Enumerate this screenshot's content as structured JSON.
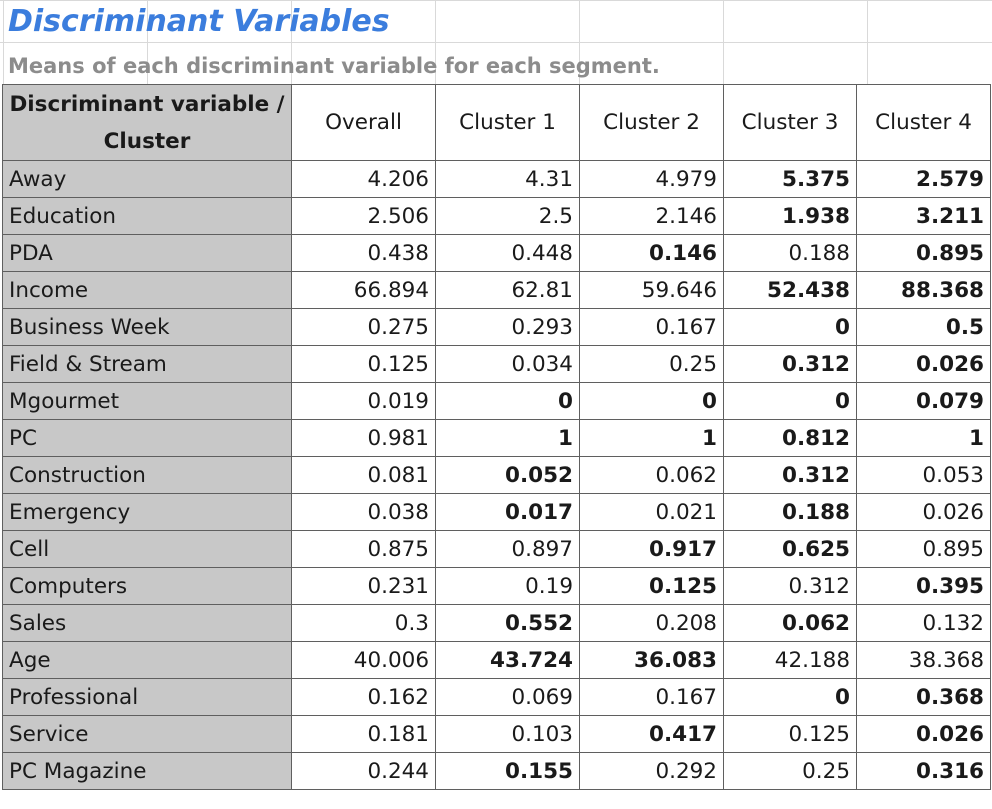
{
  "sheet": {
    "title": "Discriminant Variables",
    "subtitle": "Means of each discriminant variable for each segment."
  },
  "colors": {
    "title": "#3b7ddd",
    "high": "#2d8a24",
    "low": "#e8221e",
    "header_bg": "#c8c8c8"
  },
  "table": {
    "corner": "Discriminant variable / Cluster",
    "columns": [
      "Overall",
      "Cluster 1",
      "Cluster 2",
      "Cluster 3",
      "Cluster 4"
    ],
    "rows": [
      {
        "label": "Away",
        "values": [
          "4.206",
          "4.31",
          "4.979",
          "5.375",
          "2.579"
        ],
        "marks": [
          "",
          "",
          "",
          "hi",
          "lo"
        ]
      },
      {
        "label": "Education",
        "values": [
          "2.506",
          "2.5",
          "2.146",
          "1.938",
          "3.211"
        ],
        "marks": [
          "",
          "",
          "",
          "lo",
          "hi"
        ]
      },
      {
        "label": "PDA",
        "values": [
          "0.438",
          "0.448",
          "0.146",
          "0.188",
          "0.895"
        ],
        "marks": [
          "",
          "",
          "lo",
          "",
          "hi"
        ]
      },
      {
        "label": "Income",
        "values": [
          "66.894",
          "62.81",
          "59.646",
          "52.438",
          "88.368"
        ],
        "marks": [
          "",
          "",
          "",
          "lo",
          "hi"
        ]
      },
      {
        "label": "Business Week",
        "values": [
          "0.275",
          "0.293",
          "0.167",
          "0",
          "0.5"
        ],
        "marks": [
          "",
          "",
          "",
          "lo",
          "hi"
        ]
      },
      {
        "label": "Field & Stream",
        "values": [
          "0.125",
          "0.034",
          "0.25",
          "0.312",
          "0.026"
        ],
        "marks": [
          "",
          "",
          "",
          "hi",
          "lo"
        ]
      },
      {
        "label": "Mgourmet",
        "values": [
          "0.019",
          "0",
          "0",
          "0",
          "0.079"
        ],
        "marks": [
          "",
          "lo",
          "lo",
          "lo",
          "hi"
        ]
      },
      {
        "label": "PC",
        "values": [
          "0.981",
          "1",
          "1",
          "0.812",
          "1"
        ],
        "marks": [
          "",
          "hi",
          "hi",
          "lo",
          "hi"
        ]
      },
      {
        "label": "Construction",
        "values": [
          "0.081",
          "0.052",
          "0.062",
          "0.312",
          "0.053"
        ],
        "marks": [
          "",
          "lo",
          "",
          "hi",
          ""
        ]
      },
      {
        "label": "Emergency",
        "values": [
          "0.038",
          "0.017",
          "0.021",
          "0.188",
          "0.026"
        ],
        "marks": [
          "",
          "lo",
          "",
          "hi",
          ""
        ]
      },
      {
        "label": "Cell",
        "values": [
          "0.875",
          "0.897",
          "0.917",
          "0.625",
          "0.895"
        ],
        "marks": [
          "",
          "",
          "hi",
          "lo",
          ""
        ]
      },
      {
        "label": "Computers",
        "values": [
          "0.231",
          "0.19",
          "0.125",
          "0.312",
          "0.395"
        ],
        "marks": [
          "",
          "",
          "lo",
          "",
          "hi"
        ]
      },
      {
        "label": "Sales",
        "values": [
          "0.3",
          "0.552",
          "0.208",
          "0.062",
          "0.132"
        ],
        "marks": [
          "",
          "hi",
          "",
          "lo",
          ""
        ]
      },
      {
        "label": "Age",
        "values": [
          "40.006",
          "43.724",
          "36.083",
          "42.188",
          "38.368"
        ],
        "marks": [
          "",
          "hi",
          "lo",
          "",
          ""
        ]
      },
      {
        "label": "Professional",
        "values": [
          "0.162",
          "0.069",
          "0.167",
          "0",
          "0.368"
        ],
        "marks": [
          "",
          "",
          "",
          "lo",
          "hi"
        ]
      },
      {
        "label": "Service",
        "values": [
          "0.181",
          "0.103",
          "0.417",
          "0.125",
          "0.026"
        ],
        "marks": [
          "",
          "",
          "hi",
          "",
          "lo"
        ]
      },
      {
        "label": "PC Magazine",
        "values": [
          "0.244",
          "0.155",
          "0.292",
          "0.25",
          "0.316"
        ],
        "marks": [
          "",
          "lo",
          "",
          "",
          "hi"
        ]
      }
    ]
  }
}
